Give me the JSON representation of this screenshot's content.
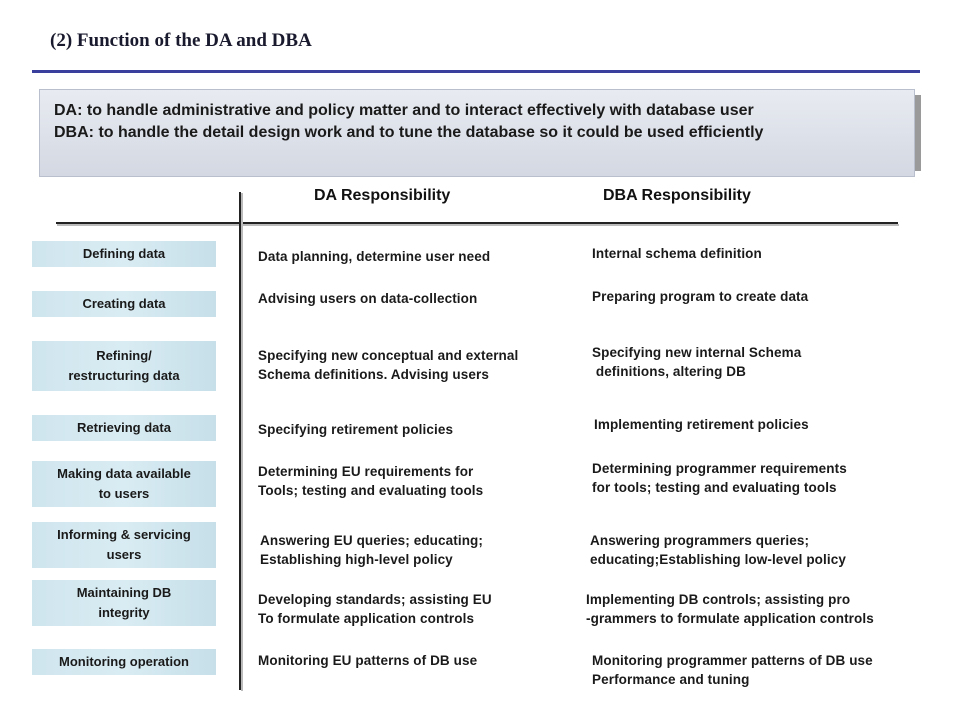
{
  "title": "(2) Function of the DA and DBA",
  "definitions": {
    "da": "DA: to handle administrative and policy matter and to interact effectively with database user",
    "dba": "DBA: to handle the detail design work and to tune the database so it could be used efficiently"
  },
  "columns": {
    "da_header": "DA Responsibility",
    "dba_header": "DBA Responsibility"
  },
  "rows": [
    {
      "function": "Defining data",
      "da": "Data planning, determine user need",
      "dba": "Internal schema definition"
    },
    {
      "function": "Creating data",
      "da": "Advising users on data-collection",
      "dba": "Preparing program to create data"
    },
    {
      "function": "Refining/\nrestructuring data",
      "da": "Specifying new conceptual and external\nSchema definitions. Advising users",
      "dba": "Specifying new internal Schema\n definitions, altering DB"
    },
    {
      "function": "Retrieving data",
      "da": "Specifying retirement policies",
      "dba": "Implementing retirement policies"
    },
    {
      "function": "Making data available\n to users",
      "da": "Determining EU requirements for\nTools; testing and evaluating tools",
      "dba": "Determining programmer requirements\nfor tools; testing and evaluating tools"
    },
    {
      "function": "Informing & servicing\n users",
      "da": "Answering EU queries; educating;\nEstablishing high-level policy",
      "dba": "Answering programmers queries;\neducating;Establishing low-level policy"
    },
    {
      "function": "Maintaining DB\n integrity",
      "da": "Developing standards; assisting EU\nTo formulate application controls",
      "dba": "Implementing DB controls; assisting pro\n-grammers to formulate application controls"
    },
    {
      "function": "Monitoring operation",
      "da": "Monitoring EU patterns of DB use",
      "dba": "Monitoring programmer patterns of DB use\nPerformance and tuning"
    }
  ],
  "colors": {
    "title_rule": "#3a3f9e",
    "function_box": "#d3e8f0",
    "definition_box": "#dde1ea"
  }
}
